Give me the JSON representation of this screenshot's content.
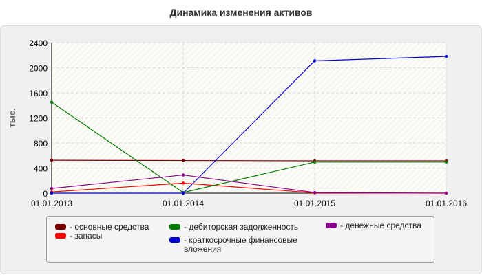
{
  "chart_data": {
    "type": "line",
    "title": "Динамика изменения активов",
    "ylabel": "тыс.",
    "xlabel": "",
    "x": [
      "01.01.2013",
      "01.01.2014",
      "01.01.2015",
      "01.01.2016"
    ],
    "ylim": [
      0,
      2400
    ],
    "yticks": [
      0,
      400,
      800,
      1200,
      1600,
      2000,
      2400
    ],
    "grid": true,
    "legend_position": "bottom",
    "series": [
      {
        "name": "основные средства",
        "color": "#7a0000",
        "values": [
          525,
          520,
          515,
          515
        ]
      },
      {
        "name": "запасы",
        "color": "#ff0000",
        "values": [
          20,
          160,
          5,
          0
        ]
      },
      {
        "name": "дебиторская задолженность",
        "color": "#007a00",
        "values": [
          1450,
          10,
          495,
          495
        ]
      },
      {
        "name": "краткосрочные финансовые вложения",
        "color": "#0000cc",
        "values": [
          0,
          0,
          2110,
          2180
        ]
      },
      {
        "name": "денежные средства",
        "color": "#880088",
        "values": [
          75,
          290,
          10,
          0
        ]
      }
    ]
  }
}
